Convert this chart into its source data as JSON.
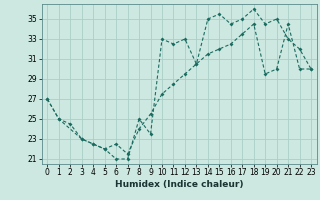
{
  "title": "",
  "xlabel": "Humidex (Indice chaleur)",
  "ylabel": "",
  "bg_color": "#cce8e0",
  "grid_color": "#aacfc8",
  "line_color": "#1a6b60",
  "xlim": [
    -0.5,
    23.5
  ],
  "ylim": [
    20.5,
    36.5
  ],
  "xticks": [
    0,
    1,
    2,
    3,
    4,
    5,
    6,
    7,
    8,
    9,
    10,
    11,
    12,
    13,
    14,
    15,
    16,
    17,
    18,
    19,
    20,
    21,
    22,
    23
  ],
  "yticks": [
    21,
    23,
    25,
    27,
    29,
    31,
    33,
    35
  ],
  "series1_x": [
    0,
    1,
    2,
    3,
    4,
    5,
    6,
    7,
    8,
    9,
    10,
    11,
    12,
    13,
    14,
    15,
    16,
    17,
    18,
    19,
    20,
    21,
    22,
    23
  ],
  "series1_y": [
    27.0,
    25.0,
    24.5,
    23.0,
    22.5,
    22.0,
    21.0,
    21.0,
    25.0,
    23.5,
    33.0,
    32.5,
    33.0,
    30.5,
    35.0,
    35.5,
    34.5,
    35.0,
    36.0,
    34.5,
    35.0,
    33.0,
    32.0,
    30.0
  ],
  "series2_x": [
    0,
    1,
    3,
    4,
    5,
    6,
    7,
    8,
    9,
    10,
    11,
    12,
    13,
    14,
    15,
    16,
    17,
    18,
    19,
    20,
    21,
    22,
    23
  ],
  "series2_y": [
    27.0,
    25.0,
    23.0,
    22.5,
    22.0,
    22.5,
    21.5,
    24.0,
    25.5,
    27.5,
    28.5,
    29.5,
    30.5,
    31.5,
    32.0,
    32.5,
    33.5,
    34.5,
    29.5,
    30.0,
    34.5,
    30.0,
    30.0
  ]
}
